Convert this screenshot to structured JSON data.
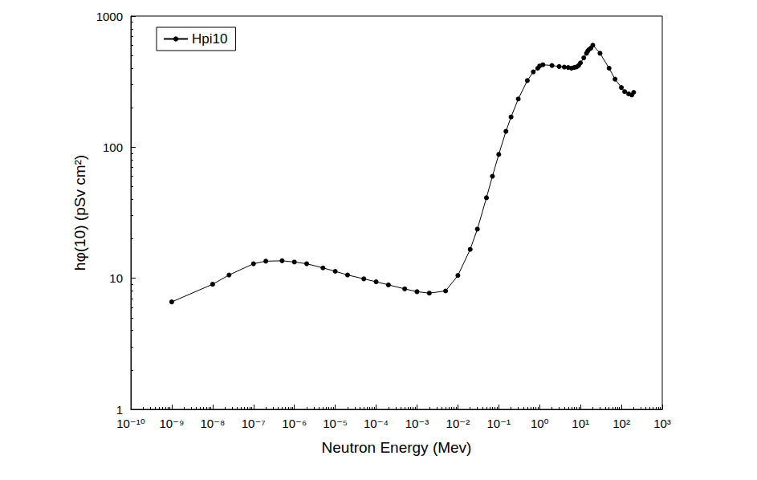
{
  "chart_data": {
    "type": "line",
    "x_label": "Neutron Energy (Mev)",
    "y_label": "hφ(10) (pSv cm²)",
    "log": true,
    "grid": false,
    "legend": "upper left",
    "xlim": [
      1e-10,
      1000
    ],
    "ylim": [
      1,
      1000
    ],
    "xticks": [
      {
        "value": 1e-10,
        "label": "10⁻¹⁰"
      },
      {
        "value": 1e-09,
        "label": "10⁻⁹"
      },
      {
        "value": 1e-08,
        "label": "10⁻⁸"
      },
      {
        "value": 1e-07,
        "label": "10⁻⁷"
      },
      {
        "value": 1e-06,
        "label": "10⁻⁶"
      },
      {
        "value": 1e-05,
        "label": "10⁻⁵"
      },
      {
        "value": 0.0001,
        "label": "10⁻⁴"
      },
      {
        "value": 0.001,
        "label": "10⁻³"
      },
      {
        "value": 0.01,
        "label": "10⁻²"
      },
      {
        "value": 0.1,
        "label": "10⁻¹"
      },
      {
        "value": 1,
        "label": "10⁰"
      },
      {
        "value": 10,
        "label": "10¹"
      },
      {
        "value": 100,
        "label": "10²"
      },
      {
        "value": 1000,
        "label": "10³"
      }
    ],
    "yticks": [
      1,
      10,
      100,
      1000
    ],
    "series": [
      {
        "name": "Hpi10",
        "color": "#000000",
        "marker": "circle",
        "line_style": "solid",
        "x": [
          1e-09,
          1e-08,
          2.53e-08,
          1e-07,
          2e-07,
          5e-07,
          1e-06,
          2e-06,
          5e-06,
          1e-05,
          2e-05,
          5e-05,
          0.0001,
          0.0002,
          0.0005,
          0.001,
          0.002,
          0.005,
          0.01,
          0.02,
          0.03,
          0.05,
          0.07,
          0.1,
          0.15,
          0.2,
          0.3,
          0.5,
          0.7,
          0.9,
          1,
          1.2,
          2,
          3,
          4,
          5,
          6,
          7,
          8,
          9,
          10,
          12,
          14,
          15,
          16,
          18,
          20,
          30,
          50,
          70,
          100,
          120,
          150,
          180,
          200
        ],
        "values": [
          6.6,
          9.0,
          10.6,
          12.9,
          13.5,
          13.6,
          13.3,
          12.9,
          12.0,
          11.3,
          10.6,
          9.9,
          9.4,
          8.9,
          8.3,
          7.9,
          7.7,
          8.0,
          10.5,
          16.6,
          23.7,
          41.1,
          60.0,
          88.0,
          132,
          170,
          233,
          322,
          375,
          400,
          416,
          425,
          420,
          412,
          408,
          405,
          400,
          405,
          409,
          420,
          440,
          480,
          520,
          540,
          555,
          570,
          600,
          520,
          400,
          330,
          285,
          265,
          255,
          250,
          262
        ]
      }
    ]
  }
}
